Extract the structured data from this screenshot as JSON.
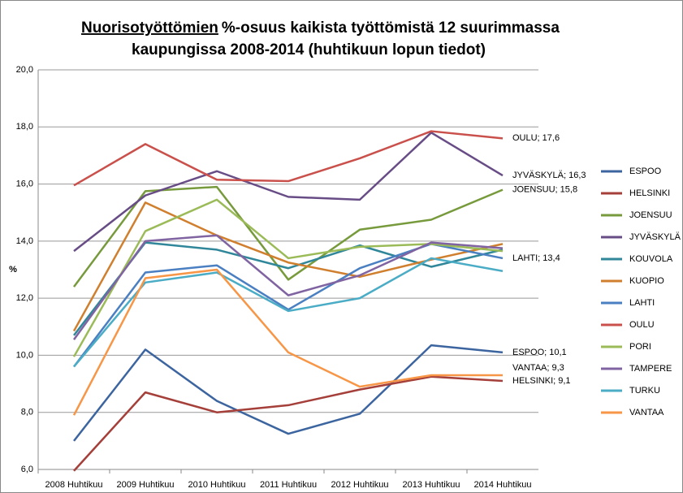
{
  "chart_data": {
    "type": "line",
    "title": {
      "underlined": "Nuorisotyöttömien",
      "rest": "%-osuus kaikista työttömistä 12 suurimmassa",
      "line2": "kaupungissa 2008-2014 (huhtikuun lopun tiedot)"
    },
    "ylabel": "%",
    "categories": [
      "2008 Huhtikuu",
      "2009 Huhtikuu",
      "2010 Huhtikuu",
      "2011 Huhtikuu",
      "2012 Huhtikuu",
      "2013 Huhtikuu",
      "2014 Huhtikuu"
    ],
    "ylim": [
      6,
      20
    ],
    "yticks": [
      {
        "value": 6,
        "label": "6,0"
      },
      {
        "value": 8,
        "label": "8,0"
      },
      {
        "value": 10,
        "label": "10,0"
      },
      {
        "value": 12,
        "label": "12,0"
      },
      {
        "value": 14,
        "label": "14,0"
      },
      {
        "value": 16,
        "label": "16,0"
      },
      {
        "value": 18,
        "label": "18,0"
      },
      {
        "value": 20,
        "label": "20,0"
      }
    ],
    "grid": true,
    "legend": "right",
    "series": [
      {
        "name": "ESPOO",
        "color": "#3c65a0",
        "values": [
          7.0,
          10.2,
          8.4,
          7.25,
          7.95,
          10.35,
          10.1
        ],
        "value_labels": [
          null,
          null,
          null,
          null,
          null,
          null,
          "ESPOO; 10,1"
        ]
      },
      {
        "name": "HELSINKI",
        "color": "#a53f3a",
        "values": [
          5.95,
          8.7,
          8.0,
          8.25,
          8.8,
          9.25,
          9.1
        ],
        "value_labels": [
          null,
          null,
          null,
          null,
          null,
          null,
          "HELSINKI; 9,1"
        ]
      },
      {
        "name": "JOENSUU",
        "color": "#779a3c",
        "values": [
          12.4,
          15.75,
          15.9,
          12.65,
          14.4,
          14.75,
          15.8
        ],
        "value_labels": [
          null,
          null,
          null,
          null,
          null,
          null,
          "JOENSUU;  15,8"
        ]
      },
      {
        "name": "JYVÄSKYLÄ",
        "color": "#674c86",
        "values": [
          13.65,
          15.6,
          16.45,
          15.55,
          15.45,
          17.8,
          16.3
        ],
        "value_labels": [
          null,
          null,
          null,
          null,
          null,
          null,
          "JYVÄSKYLÄ; 16,3"
        ]
      },
      {
        "name": "KOUVOLA",
        "color": "#30879a",
        "values": [
          10.7,
          13.95,
          13.7,
          13.05,
          13.85,
          13.1,
          13.7
        ]
      },
      {
        "name": "KUOPIO",
        "color": "#d07f2e",
        "values": [
          10.85,
          15.35,
          14.2,
          13.25,
          12.75,
          13.35,
          13.9
        ]
      },
      {
        "name": "LAHTI",
        "color": "#4a7fc1",
        "values": [
          9.6,
          12.9,
          13.15,
          11.6,
          13.05,
          13.9,
          13.4
        ],
        "value_labels": [
          null,
          null,
          null,
          null,
          null,
          null,
          "LAHTI; 13,4"
        ]
      },
      {
        "name": "OULU",
        "color": "#c9504b",
        "values": [
          15.95,
          17.4,
          16.15,
          16.1,
          16.9,
          17.85,
          17.6
        ],
        "value_labels": [
          null,
          null,
          null,
          null,
          null,
          null,
          "OULU; 17,6"
        ]
      },
      {
        "name": "PORI",
        "color": "#9bbb59",
        "values": [
          9.95,
          14.35,
          15.45,
          13.4,
          13.8,
          13.9,
          13.65
        ]
      },
      {
        "name": "TAMPERE",
        "color": "#8064a2",
        "values": [
          10.55,
          14.0,
          14.2,
          12.1,
          12.8,
          13.95,
          13.75
        ]
      },
      {
        "name": "TURKU",
        "color": "#4bacc6",
        "values": [
          9.6,
          12.55,
          12.9,
          11.55,
          12.0,
          13.4,
          12.95
        ]
      },
      {
        "name": "VANTAA",
        "color": "#f79646",
        "values": [
          7.9,
          12.7,
          13.0,
          10.1,
          8.9,
          9.3,
          9.3
        ],
        "value_labels": [
          null,
          null,
          null,
          null,
          null,
          null,
          "VANTAA; 9,3"
        ]
      }
    ]
  }
}
